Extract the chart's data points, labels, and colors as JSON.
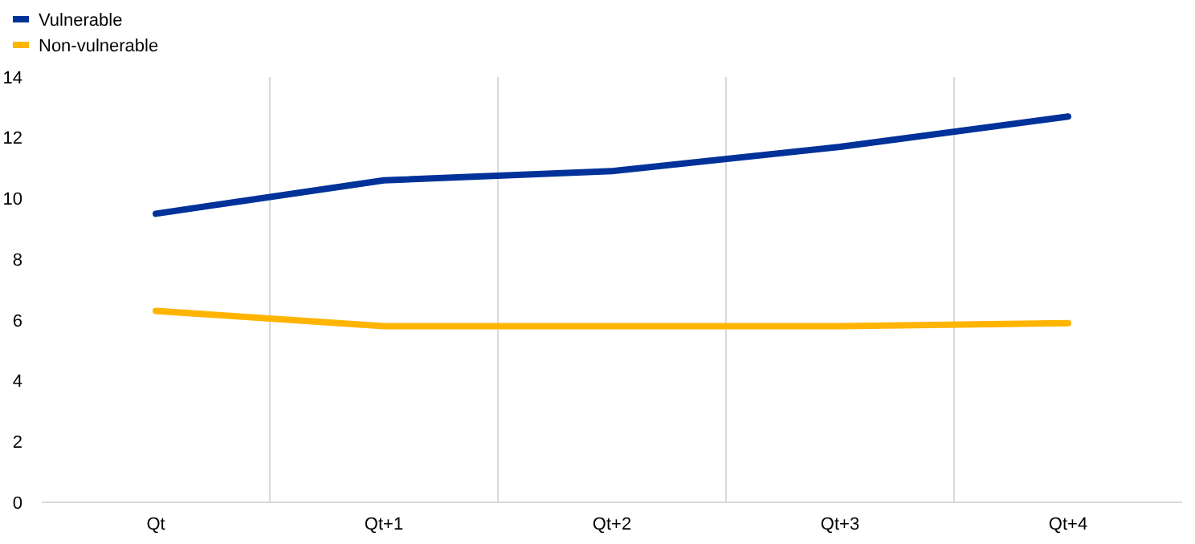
{
  "chart_data": {
    "type": "line",
    "categories": [
      "Qt",
      "Qt+1",
      "Qt+2",
      "Qt+3",
      "Qt+4"
    ],
    "series": [
      {
        "name": "Vulnerable",
        "color": "#003299",
        "values": [
          9.5,
          10.6,
          10.9,
          11.7,
          12.7
        ]
      },
      {
        "name": "Non-vulnerable",
        "color": "#ffb400",
        "values": [
          6.3,
          5.8,
          5.8,
          5.8,
          5.9
        ]
      }
    ],
    "ylim": [
      0,
      14
    ],
    "yticks": [
      0,
      2,
      4,
      6,
      8,
      10,
      12,
      14
    ],
    "grid": "x",
    "legend": "top left",
    "marker": "none",
    "line_style": "solid"
  }
}
